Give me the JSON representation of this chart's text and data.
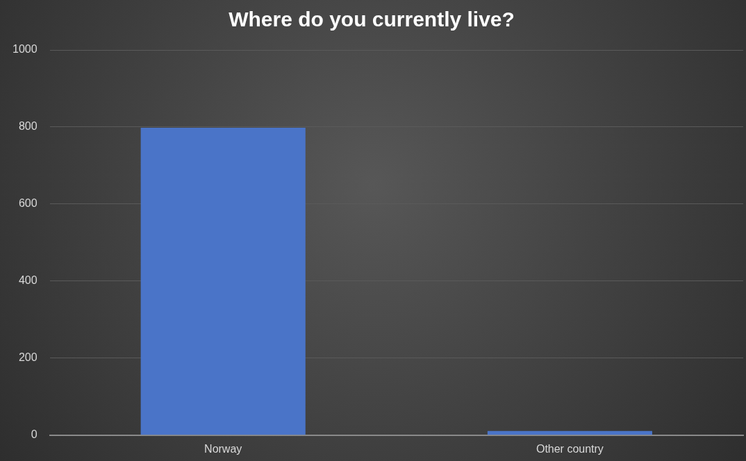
{
  "chart_data": {
    "type": "bar",
    "title": "Where do you currently live?",
    "categories": [
      "Norway",
      "Other country"
    ],
    "values": [
      798,
      11
    ],
    "color": "#4a74c8",
    "ylim": [
      0,
      1000
    ],
    "yticks": [
      0,
      200,
      400,
      600,
      800,
      1000
    ],
    "grid": "y"
  }
}
